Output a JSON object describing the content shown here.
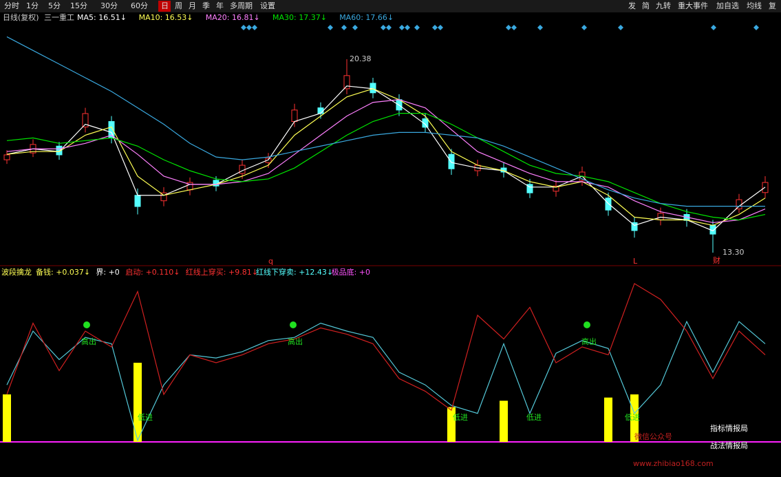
{
  "toolbar": {
    "left": [
      "分时",
      "1分",
      "5分",
      "15分",
      "30分",
      "60分",
      "日",
      "周",
      "月",
      "季",
      "年",
      "多周期",
      "设置"
    ],
    "active": "日",
    "right": [
      "发",
      "简",
      "九转",
      "重大事件",
      "加自选",
      "均线",
      "复"
    ]
  },
  "chart_data": [
    {
      "type": "candlestick",
      "title": "日线(复权)",
      "subtitle": "三一重工",
      "ylim": [
        12.85,
        21.79
      ],
      "open": [
        16.7,
        16.95,
        17.2,
        17.9,
        18.1,
        15.4,
        15.2,
        15.6,
        15.95,
        16.2,
        16.6,
        18.1,
        18.6,
        19.3,
        19.5,
        18.9,
        18.2,
        16.9,
        16.3,
        16.4,
        15.8,
        15.55,
        15.95,
        15.3,
        14.4,
        14.5,
        14.7,
        14.3,
        14.9,
        15.5
      ],
      "high": [
        17.05,
        17.45,
        17.35,
        18.6,
        18.3,
        15.65,
        15.7,
        16.05,
        16.1,
        16.7,
        16.95,
        18.75,
        18.8,
        20.38,
        19.7,
        19.1,
        18.4,
        17.1,
        16.7,
        16.6,
        16.0,
        15.95,
        16.45,
        15.5,
        14.6,
        14.95,
        14.9,
        14.5,
        15.45,
        16.1
      ],
      "low": [
        16.55,
        16.8,
        16.7,
        17.7,
        17.3,
        14.7,
        15.0,
        15.4,
        15.55,
        16.0,
        16.4,
        17.9,
        18.2,
        19.1,
        18.95,
        18.3,
        17.7,
        16.15,
        16.1,
        16.05,
        15.3,
        15.35,
        15.75,
        14.65,
        13.85,
        14.3,
        14.25,
        13.3,
        14.75,
        15.3
      ],
      "close": [
        16.88,
        17.26,
        16.88,
        18.39,
        17.51,
        14.99,
        15.49,
        15.87,
        15.74,
        16.5,
        16.75,
        18.52,
        18.39,
        19.78,
        19.15,
        18.52,
        17.89,
        16.37,
        16.5,
        16.25,
        15.49,
        15.74,
        16.25,
        14.86,
        14.11,
        14.74,
        14.48,
        13.98,
        15.24,
        15.87
      ],
      "up_color": "#ff3232",
      "down_color": "#54ffff",
      "series": [
        {
          "name": "MA5: 16.51↓",
          "color": "#ffffff",
          "values": [
            16.9,
            17.1,
            17.0,
            18.0,
            17.7,
            15.4,
            15.4,
            15.8,
            15.8,
            16.3,
            16.7,
            18.1,
            18.4,
            19.4,
            19.3,
            18.7,
            18.0,
            16.6,
            16.4,
            16.3,
            15.7,
            15.7,
            16.1,
            15.1,
            14.3,
            14.6,
            14.5,
            14.1,
            15.0,
            15.7
          ]
        },
        {
          "name": "MA10: 16.53↓",
          "color": "#ffff54",
          "values": [
            16.9,
            17.0,
            17.0,
            17.6,
            17.9,
            16.1,
            15.4,
            15.6,
            15.8,
            16.1,
            16.5,
            17.6,
            18.3,
            19.0,
            19.3,
            18.9,
            18.3,
            17.0,
            16.5,
            16.3,
            15.9,
            15.7,
            15.9,
            15.4,
            14.6,
            14.5,
            14.5,
            14.3,
            14.7,
            15.3
          ]
        },
        {
          "name": "MA20: 16.81↓",
          "color": "#ff80ff",
          "values": [
            17.0,
            17.1,
            17.1,
            17.3,
            17.6,
            16.9,
            16.1,
            15.8,
            15.8,
            15.9,
            16.2,
            16.9,
            17.6,
            18.3,
            18.8,
            18.9,
            18.6,
            17.8,
            17.0,
            16.6,
            16.2,
            15.9,
            15.9,
            15.7,
            15.2,
            14.8,
            14.6,
            14.4,
            14.5,
            14.9
          ]
        },
        {
          "name": "MA30: 17.37↓",
          "color": "#00e600",
          "values": [
            17.4,
            17.5,
            17.3,
            17.4,
            17.5,
            17.2,
            16.7,
            16.3,
            16.0,
            15.9,
            16.0,
            16.4,
            17.0,
            17.6,
            18.1,
            18.4,
            18.4,
            18.0,
            17.5,
            17.0,
            16.5,
            16.2,
            16.1,
            15.9,
            15.5,
            15.1,
            14.8,
            14.6,
            14.5,
            14.7
          ]
        },
        {
          "name": "MA60: 17.66↓",
          "color": "#3aa9e0",
          "values": [
            21.2,
            20.7,
            20.2,
            19.7,
            19.2,
            18.6,
            18.0,
            17.3,
            16.8,
            16.7,
            16.8,
            17.0,
            17.2,
            17.4,
            17.6,
            17.7,
            17.7,
            17.6,
            17.5,
            17.2,
            16.8,
            16.4,
            16.0,
            15.6,
            15.3,
            15.1,
            15.0,
            15.0,
            15.0,
            15.0
          ]
        }
      ],
      "annotations": [
        {
          "text": "20.38",
          "value": 20.38
        },
        {
          "text": "13.30",
          "value": 13.3
        }
      ],
      "markers": [
        "q",
        "L",
        "财"
      ]
    },
    {
      "type": "indicator",
      "title": "波段擒龙",
      "ylim": [
        0,
        100
      ],
      "legend": [
        {
          "text": "备钱: +0.037↓",
          "color": "#ffff54"
        },
        {
          "text": "界: +0",
          "color": "#ffffff"
        },
        {
          "text": "启动: +0.110↓",
          "color": "#ff3232"
        },
        {
          "text": "红线上穿买: +9.81↓",
          "color": "#ff3232"
        },
        {
          "text": "红线下穿卖: +12.43↓",
          "color": "#54ffff"
        },
        {
          "text": "极品底: +0",
          "color": "#ff54ff"
        }
      ],
      "series": [
        {
          "name": "cyan",
          "color": "#54c8d8",
          "values": [
            36,
            70,
            52,
            66,
            62,
            1,
            36,
            55,
            53,
            57,
            64,
            66,
            75,
            70,
            66,
            44,
            36,
            23,
            18,
            62,
            18,
            56,
            64,
            59,
            18,
            36,
            76,
            44,
            76,
            62
          ]
        },
        {
          "name": "red",
          "color": "#d02020",
          "values": [
            30,
            75,
            45,
            70,
            60,
            95,
            30,
            55,
            50,
            55,
            62,
            65,
            72,
            68,
            62,
            40,
            32,
            20,
            80,
            65,
            85,
            50,
            60,
            55,
            100,
            90,
            70,
            40,
            70,
            55
          ]
        },
        {
          "name": "bars",
          "color": "#ffff00",
          "values": [
            30,
            0,
            0,
            0,
            0,
            50,
            0,
            0,
            0,
            0,
            0,
            0,
            0,
            0,
            0,
            0,
            0,
            22,
            0,
            26,
            0,
            0,
            0,
            28,
            30,
            0,
            0,
            0,
            0,
            0
          ]
        }
      ],
      "high_labels": [
        "高出",
        "高出",
        "高出"
      ],
      "low_labels": [
        "低进",
        "低进",
        "低进",
        "低进"
      ]
    }
  ],
  "watermark": {
    "line1": "微信公众号",
    "line2": "指标情报局",
    "line3": "战法情报局",
    "url": "www.zhibiao168.com"
  }
}
